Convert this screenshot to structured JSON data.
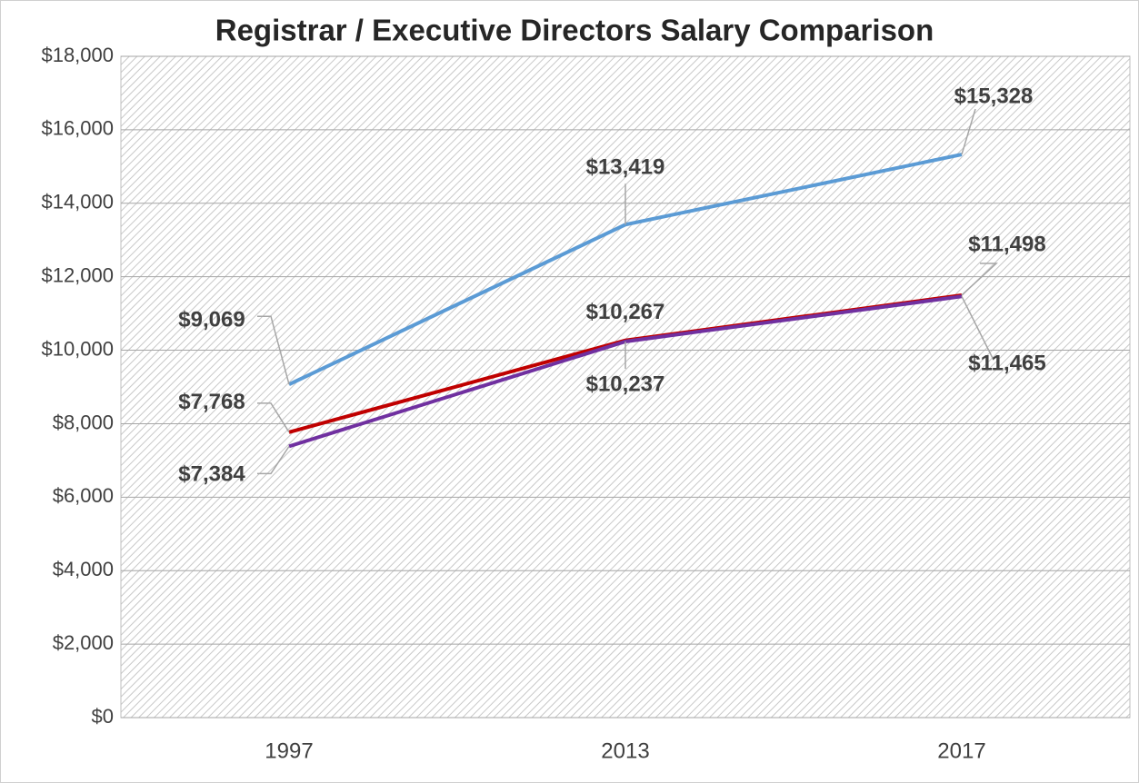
{
  "chart_data": {
    "type": "line",
    "title": "Registrar / Executive Directors Salary Comparison",
    "categories": [
      "1997",
      "2013",
      "2017"
    ],
    "series": [
      {
        "color": "#5b9bd5",
        "values": [
          9069,
          13419,
          15328
        ],
        "value_labels": [
          "$9,069",
          "$13,419",
          "$15,328"
        ]
      },
      {
        "color": "#c00000",
        "values": [
          7768,
          10267,
          11498
        ],
        "value_labels": [
          "$7,768",
          "$10,267",
          "$11,498"
        ]
      },
      {
        "color": "#7030a0",
        "values": [
          7384,
          10237,
          11465
        ],
        "value_labels": [
          "$7,384",
          "$10,237",
          "$11,465"
        ]
      }
    ],
    "ylim": [
      0,
      18000
    ],
    "yticks": [
      {
        "value": 0,
        "label": "$0"
      },
      {
        "value": 2000,
        "label": "$2,000"
      },
      {
        "value": 4000,
        "label": "$4,000"
      },
      {
        "value": 6000,
        "label": "$6,000"
      },
      {
        "value": 8000,
        "label": "$8,000"
      },
      {
        "value": 10000,
        "label": "$10,000"
      },
      {
        "value": 12000,
        "label": "$12,000"
      },
      {
        "value": 14000,
        "label": "$14,000"
      },
      {
        "value": 16000,
        "label": "$16,000"
      },
      {
        "value": 18000,
        "label": "$18,000"
      }
    ],
    "grid": true
  }
}
